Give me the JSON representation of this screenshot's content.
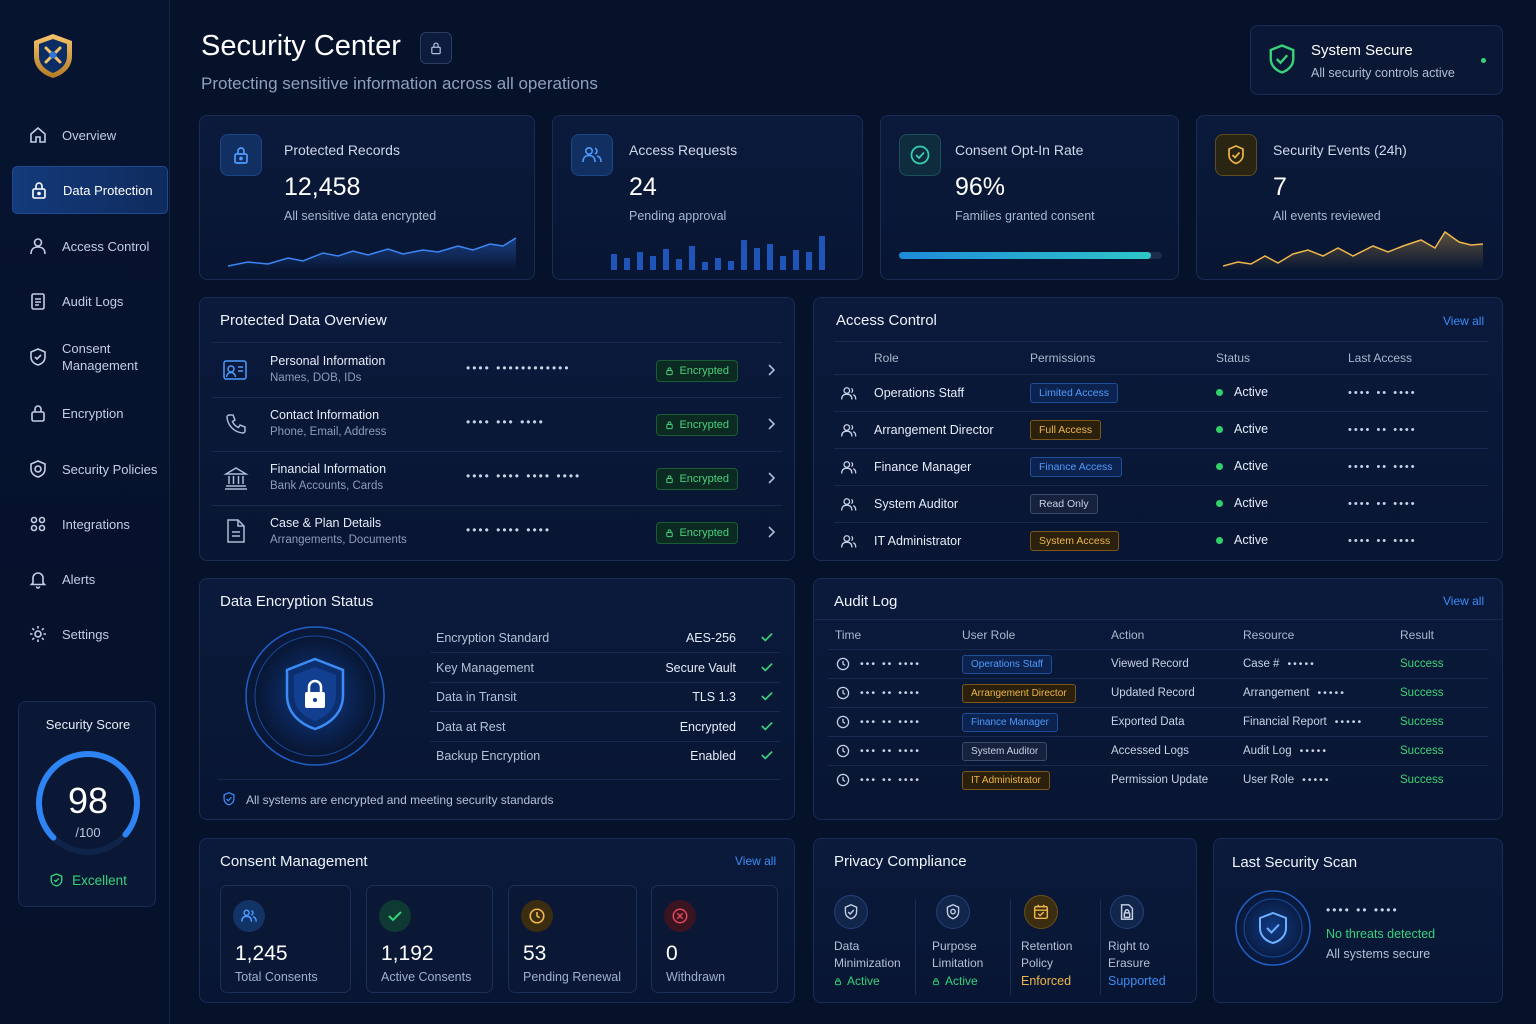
{
  "header": {
    "title": "Security Center",
    "subtitle": "Protecting sensitive information across all operations",
    "status": {
      "title": "System Secure",
      "text": "All security controls active"
    }
  },
  "sidebar": {
    "items": [
      {
        "label": "Overview",
        "icon": "home-icon"
      },
      {
        "label": "Data Protection",
        "icon": "lock-icon",
        "active": true
      },
      {
        "label": "Access Control",
        "icon": "user-icon"
      },
      {
        "label": "Audit Logs",
        "icon": "audit-log-icon"
      },
      {
        "label": "Consent Management",
        "icon": "shield-check-icon"
      },
      {
        "label": "Encryption",
        "icon": "lock-icon"
      },
      {
        "label": "Security Policies",
        "icon": "policy-shield-icon"
      },
      {
        "label": "Integrations",
        "icon": "integrations-icon"
      },
      {
        "label": "Alerts",
        "icon": "bell-icon"
      },
      {
        "label": "Settings",
        "icon": "gear-icon"
      }
    ],
    "score": {
      "title": "Security Score",
      "value": "98",
      "max": "/100",
      "rating": "Excellent",
      "level": 0.98
    }
  },
  "stats": [
    {
      "title": "Protected Records",
      "value": "12,458",
      "caption": "All sensitive data encrypted",
      "icon": "lock-icon"
    },
    {
      "title": "Access Requests",
      "value": "24",
      "caption": "Pending approval",
      "icon": "users-icon"
    },
    {
      "title": "Consent Opt-In Rate",
      "value": "96%",
      "caption": "Families granted consent",
      "icon": "check-circle-icon",
      "progress": 0.96
    },
    {
      "title": "Security Events (24h)",
      "value": "7",
      "caption": "All events reviewed",
      "icon": "shield-check-icon"
    }
  ],
  "protected_data": {
    "title": "Protected Data Overview",
    "rows": [
      {
        "name": "Personal Information",
        "detail": "Names, DOB, IDs",
        "masked": "•••• ••••••••••••",
        "badge": "Encrypted",
        "icon": "id-card-icon"
      },
      {
        "name": "Contact Information",
        "detail": "Phone, Email, Address",
        "masked": "•••• ••• ••••",
        "badge": "Encrypted",
        "icon": "phone-icon"
      },
      {
        "name": "Financial Information",
        "detail": "Bank Accounts, Cards",
        "masked": "•••• •••• •••• ••••",
        "badge": "Encrypted",
        "icon": "bank-icon"
      },
      {
        "name": "Case & Plan Details",
        "detail": "Arrangements, Documents",
        "masked": "•••• •••• ••••",
        "badge": "Encrypted",
        "icon": "document-icon"
      }
    ]
  },
  "access_control": {
    "title": "Access Control",
    "view_all": "View all",
    "columns": [
      "Role",
      "Permissions",
      "Status",
      "Last Access"
    ],
    "rows": [
      {
        "role": "Operations Staff",
        "permission": "Limited Access",
        "tone": "blue",
        "status": "Active",
        "last": "•••• •• ••••"
      },
      {
        "role": "Arrangement Director",
        "permission": "Full Access",
        "tone": "gold",
        "status": "Active",
        "last": "•••• •• ••••"
      },
      {
        "role": "Finance Manager",
        "permission": "Finance Access",
        "tone": "blue",
        "status": "Active",
        "last": "•••• •• ••••"
      },
      {
        "role": "System Auditor",
        "permission": "Read Only",
        "tone": "gray",
        "status": "Active",
        "last": "•••• •• ••••"
      },
      {
        "role": "IT Administrator",
        "permission": "System Access",
        "tone": "gold",
        "status": "Active",
        "last": "•••• •• ••••"
      }
    ]
  },
  "encryption": {
    "title": "Data Encryption Status",
    "rows": [
      {
        "label": "Encryption Standard",
        "value": "AES-256"
      },
      {
        "label": "Key Management",
        "value": "Secure Vault"
      },
      {
        "label": "Data in Transit",
        "value": "TLS 1.3"
      },
      {
        "label": "Data at Rest",
        "value": "Encrypted"
      },
      {
        "label": "Backup Encryption",
        "value": "Enabled"
      }
    ],
    "footer": "All systems are encrypted and meeting security standards"
  },
  "audit_log": {
    "title": "Audit Log",
    "view_all": "View all",
    "columns": [
      "Time",
      "User Role",
      "Action",
      "Resource",
      "Result"
    ],
    "rows": [
      {
        "time": "••• •• ••••",
        "role": "Operations Staff",
        "tone": "blue",
        "action": "Viewed Record",
        "resource": "Case #",
        "mask": "•••••",
        "result": "Success"
      },
      {
        "time": "••• •• ••••",
        "role": "Arrangement Director",
        "tone": "gold",
        "action": "Updated Record",
        "resource": "Arrangement",
        "mask": "•••••",
        "result": "Success"
      },
      {
        "time": "••• •• ••••",
        "role": "Finance Manager",
        "tone": "blue",
        "action": "Exported Data",
        "resource": "Financial Report",
        "mask": "•••••",
        "result": "Success"
      },
      {
        "time": "••• •• ••••",
        "role": "System Auditor",
        "tone": "gray",
        "action": "Accessed Logs",
        "resource": "Audit Log",
        "mask": "•••••",
        "result": "Success"
      },
      {
        "time": "••• •• ••••",
        "role": "IT Administrator",
        "tone": "gold",
        "action": "Permission Update",
        "resource": "User Role",
        "mask": "•••••",
        "result": "Success"
      }
    ]
  },
  "consent": {
    "title": "Consent Management",
    "view_all": "View all",
    "cards": [
      {
        "value": "1,245",
        "label": "Total Consents",
        "icon": "users-icon"
      },
      {
        "value": "1,192",
        "label": "Active Consents",
        "icon": "check-icon"
      },
      {
        "value": "53",
        "label": "Pending Renewal",
        "icon": "clock-icon"
      },
      {
        "value": "0",
        "label": "Withdrawn",
        "icon": "x-circle-icon"
      }
    ]
  },
  "privacy": {
    "title": "Privacy Compliance",
    "items": [
      {
        "label": "Data Minimization",
        "status": "Active",
        "icon": "shield-check-icon"
      },
      {
        "label": "Purpose Limitation",
        "status": "Active",
        "icon": "policy-shield-icon"
      },
      {
        "label": "Retention Policy",
        "status": "Enforced",
        "icon": "calendar-icon"
      },
      {
        "label": "Right to Erasure",
        "status": "Supported",
        "icon": "lock-document-icon"
      }
    ]
  },
  "scan": {
    "title": "Last Security Scan",
    "time": "•••• •• ••••",
    "result": "No threats detected",
    "note": "All systems secure"
  },
  "colors": {
    "accent": "#3b8cf7",
    "success": "#37d27a",
    "gold": "#f0b64a",
    "teal": "#2ec6c8"
  }
}
